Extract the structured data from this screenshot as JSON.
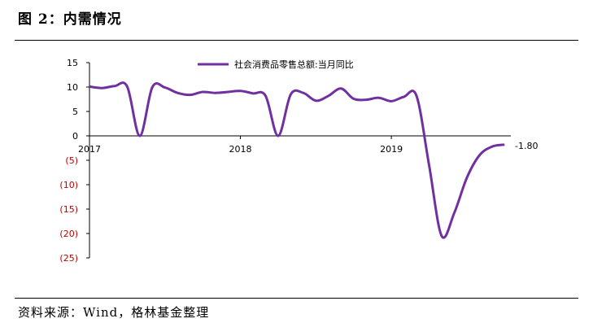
{
  "figure_title": "图 2：内需情况",
  "source_note": "资料来源：Wind，格林基金整理",
  "chart_data": {
    "type": "line",
    "title": "",
    "xlabel": "",
    "ylabel": "",
    "ylim": [
      -25,
      15
    ],
    "y_ticks": [
      15,
      10,
      5,
      0,
      -5,
      -10,
      -15,
      -20,
      -25
    ],
    "y_tick_labels": [
      "15",
      "10",
      "5",
      "0",
      "(5)",
      "(10)",
      "(15)",
      "(20)",
      "(25)"
    ],
    "x_ticks": [
      {
        "label": "2017",
        "x": 0
      },
      {
        "label": "2018",
        "x": 12
      },
      {
        "label": "2019",
        "x": 24
      }
    ],
    "xlim": [
      0,
      33.5
    ],
    "legend_position": "top-center",
    "negative_label_color": "#c00000",
    "series": [
      {
        "name": "社会消费品零售总额:当月同比",
        "color": "#7030a0",
        "x": [
          0,
          1,
          2,
          3,
          4,
          5,
          6,
          7,
          8,
          9,
          10,
          11,
          12,
          13,
          14,
          15,
          16,
          17,
          18,
          19,
          20,
          21,
          22,
          23,
          24,
          25,
          26,
          27,
          28,
          29,
          30,
          31,
          32,
          33
        ],
        "values": [
          10.1,
          9.8,
          10.2,
          10.1,
          0.0,
          10.0,
          9.9,
          8.8,
          8.4,
          9.0,
          8.8,
          9.0,
          9.2,
          8.7,
          8.2,
          0.0,
          8.5,
          8.8,
          7.2,
          8.2,
          9.7,
          7.6,
          7.4,
          7.8,
          7.1,
          8.0,
          8.2,
          -6.0,
          -20.5,
          -15.8,
          -8.6,
          -4.0,
          -2.2,
          -1.8
        ]
      }
    ],
    "end_label": "-1.80"
  }
}
